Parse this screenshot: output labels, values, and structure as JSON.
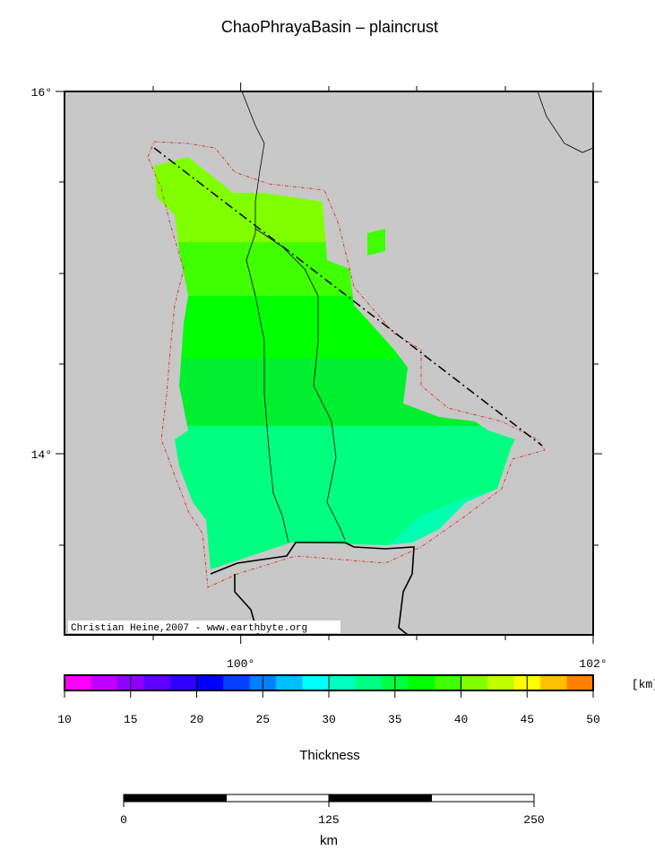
{
  "map": {
    "title": "ChaoPhrayaBasin – plaincrust",
    "xlim": [
      99,
      102
    ],
    "ylim": [
      13,
      16
    ],
    "xticks": [
      {
        "value": 100,
        "label": "100°"
      },
      {
        "value": 102,
        "label": "102°"
      }
    ],
    "yticks": [
      {
        "value": 14,
        "label": "14°"
      },
      {
        "value": 16,
        "label": "16°"
      }
    ],
    "credit": "Christian Heine,2007 - www.earthbyte.org"
  },
  "colorbar": {
    "lim": [
      10,
      50
    ],
    "ticks": [
      10,
      15,
      20,
      25,
      30,
      35,
      40,
      45,
      50
    ],
    "unit": "[km]",
    "label": "Thickness",
    "colors": [
      "#ff00ff",
      "#c000ff",
      "#9000ff",
      "#6000ff",
      "#3000ff",
      "#0000ff",
      "#0040ff",
      "#0080ff",
      "#00c0ff",
      "#00ffff",
      "#00ffc0",
      "#00ff80",
      "#00ff40",
      "#00ff00",
      "#40ff00",
      "#80ff00",
      "#c0ff00",
      "#ffff00",
      "#ffc000",
      "#ff8000"
    ]
  },
  "scale_bar": {
    "lim": [
      0,
      250
    ],
    "ticks": [
      0,
      125,
      250
    ],
    "unit": "km"
  }
}
